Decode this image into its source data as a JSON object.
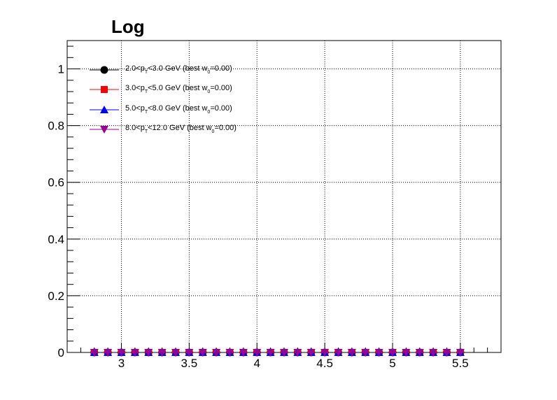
{
  "chart_data": {
    "type": "scatter",
    "title": "Log",
    "xlabel": "",
    "ylabel": "",
    "xlim": [
      2.6,
      5.8
    ],
    "ylim": [
      0,
      1.1
    ],
    "grid": true,
    "legend_position": "top-left",
    "x_ticks": [
      3,
      3.5,
      4,
      4.5,
      5,
      5.5
    ],
    "x_tick_labels": [
      "3",
      "3.5",
      "4",
      "4.5",
      "5",
      "5.5"
    ],
    "y_ticks": [
      0,
      0.2,
      0.4,
      0.6,
      0.8,
      1
    ],
    "y_tick_labels": [
      "0",
      "0.2",
      "0.4",
      "0.6",
      "0.8",
      "1"
    ],
    "x": [
      2.8,
      2.9,
      3.0,
      3.1,
      3.2,
      3.3,
      3.4,
      3.5,
      3.6,
      3.7,
      3.8,
      3.9,
      4.0,
      4.1,
      4.2,
      4.3,
      4.4,
      4.5,
      4.6,
      4.7,
      4.8,
      4.9,
      5.0,
      5.1,
      5.2,
      5.3,
      5.4,
      5.5
    ],
    "series": [
      {
        "legend": {
          "pre": "2.0<p",
          "sub": "T",
          "mid": "<3.0 GeV  (best w",
          "sub2": "0",
          "post": "=0.00)"
        },
        "color": "#000000",
        "marker": "circle",
        "values": [
          0,
          0,
          0,
          0,
          0,
          0,
          0,
          0,
          0,
          0,
          0,
          0,
          0,
          0,
          0,
          0,
          0,
          0,
          0,
          0,
          0,
          0,
          0,
          0,
          0,
          0,
          0,
          0
        ]
      },
      {
        "legend": {
          "pre": "3.0<p",
          "sub": "T",
          "mid": "<5.0 GeV  (best w",
          "sub2": "0",
          "post": "=0.00)"
        },
        "color": "#ff0000",
        "marker": "square",
        "values": [
          0,
          0,
          0,
          0,
          0,
          0,
          0,
          0,
          0,
          0,
          0,
          0,
          0,
          0,
          0,
          0,
          0,
          0,
          0,
          0,
          0,
          0,
          0,
          0,
          0,
          0,
          0,
          0
        ]
      },
      {
        "legend": {
          "pre": "5.0<p",
          "sub": "T",
          "mid": "<8.0 GeV  (best w",
          "sub2": "0",
          "post": "=0.00)"
        },
        "color": "#0000ff",
        "marker": "triangle-up",
        "values": [
          0,
          0,
          0,
          0,
          0,
          0,
          0,
          0,
          0,
          0,
          0,
          0,
          0,
          0,
          0,
          0,
          0,
          0,
          0,
          0,
          0,
          0,
          0,
          0,
          0,
          0,
          0,
          0
        ]
      },
      {
        "legend": {
          "pre": "8.0<p",
          "sub": "T",
          "mid": "<12.0 GeV  (best w",
          "sub2": "0",
          "post": "=0.00)"
        },
        "color": "#990099",
        "marker": "triangle-down",
        "values": [
          0,
          0,
          0,
          0,
          0,
          0,
          0,
          0,
          0,
          0,
          0,
          0,
          0,
          0,
          0,
          0,
          0,
          0,
          0,
          0,
          0,
          0,
          0,
          0,
          0,
          0,
          0,
          0
        ]
      }
    ]
  }
}
